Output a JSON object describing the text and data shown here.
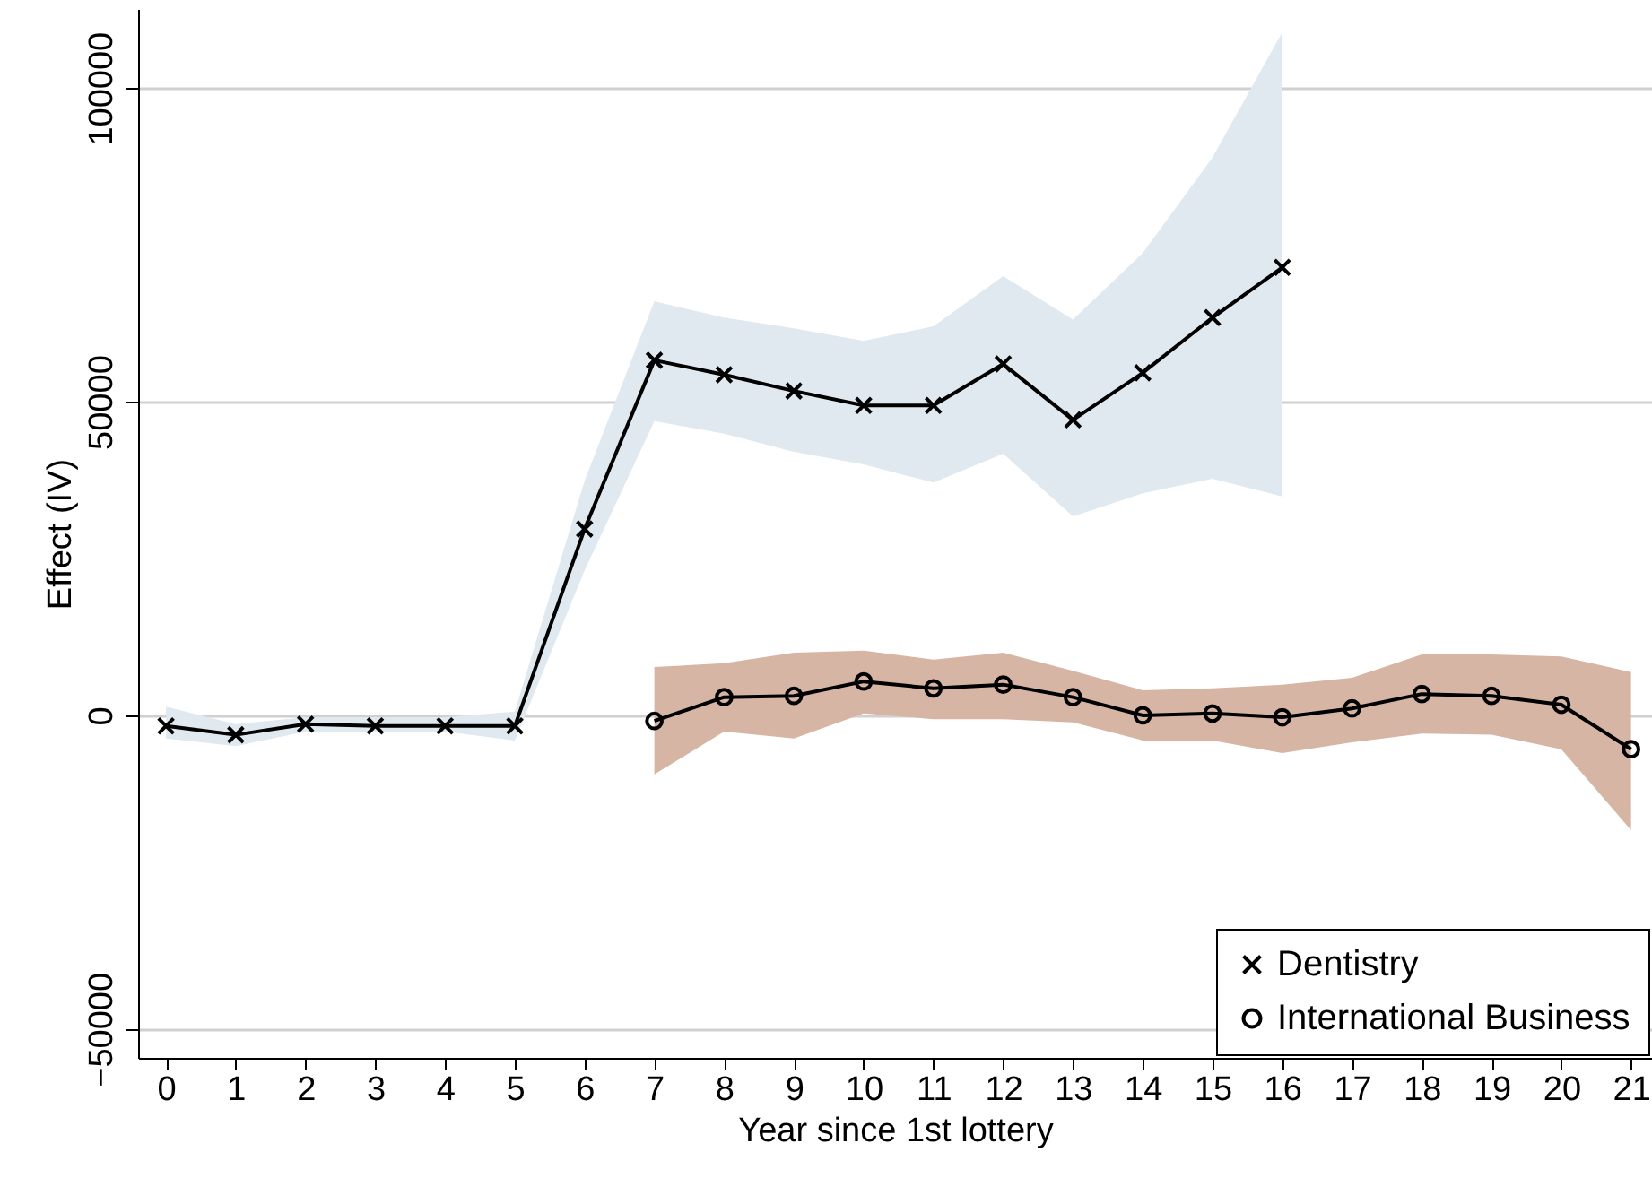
{
  "chart_data": {
    "type": "line",
    "xlabel": "Year since 1st lottery",
    "ylabel": "Effect (IV)",
    "xlim": [
      -0.4,
      21.3
    ],
    "ylim": [
      -54600,
      112600
    ],
    "xticks": [
      0,
      1,
      2,
      3,
      4,
      5,
      6,
      7,
      8,
      9,
      10,
      11,
      12,
      13,
      14,
      15,
      16,
      17,
      18,
      19,
      20,
      21
    ],
    "yticks": [
      -50000,
      0,
      50000,
      100000
    ],
    "colors": [
      "#dfe9ef",
      "#d7b5a5"
    ],
    "grid": "y",
    "legend": "bottom right",
    "line_style": "solid",
    "series": [
      {
        "name": "Dentistry",
        "color": "#000000",
        "marker": "cross",
        "x": [
          0,
          1,
          2,
          3,
          4,
          5,
          6,
          7,
          8,
          9,
          10,
          11,
          12,
          13,
          14,
          15,
          16
        ],
        "values": [
          -1700,
          -3100,
          -1400,
          -1700,
          -1700,
          -1700,
          29700,
          56600,
          54300,
          51700,
          49400,
          49400,
          56000,
          47100,
          54600,
          63400,
          71400
        ],
        "lower": [
          -3700,
          -4900,
          -2600,
          -2600,
          -2600,
          -4000,
          23100,
          46900,
          44900,
          42000,
          40000,
          37100,
          41700,
          31700,
          35400,
          37700,
          34900
        ],
        "upper": [
          1400,
          -1400,
          -300,
          -300,
          -300,
          600,
          37400,
          66000,
          63400,
          61700,
          59700,
          62000,
          70000,
          63100,
          73700,
          88900,
          108900
        ]
      },
      {
        "name": "International Business",
        "color": "#000000",
        "marker": "circle",
        "x": [
          7,
          8,
          9,
          10,
          11,
          12,
          13,
          14,
          15,
          16,
          17,
          18,
          19,
          20,
          21
        ],
        "values": [
          -900,
          2900,
          3100,
          5400,
          4300,
          4900,
          2900,
          0,
          300,
          -300,
          1100,
          3400,
          3100,
          1700,
          -5400
        ],
        "lower": [
          -9400,
          -2600,
          -3700,
          300,
          -600,
          -600,
          -1100,
          -4000,
          -4000,
          -6000,
          -4300,
          -2900,
          -3100,
          -5400,
          -18300
        ],
        "upper": [
          7700,
          8300,
          10000,
          10300,
          8900,
          10000,
          7100,
          4000,
          4300,
          4900,
          6000,
          9700,
          9700,
          9400,
          6900
        ]
      }
    ]
  }
}
